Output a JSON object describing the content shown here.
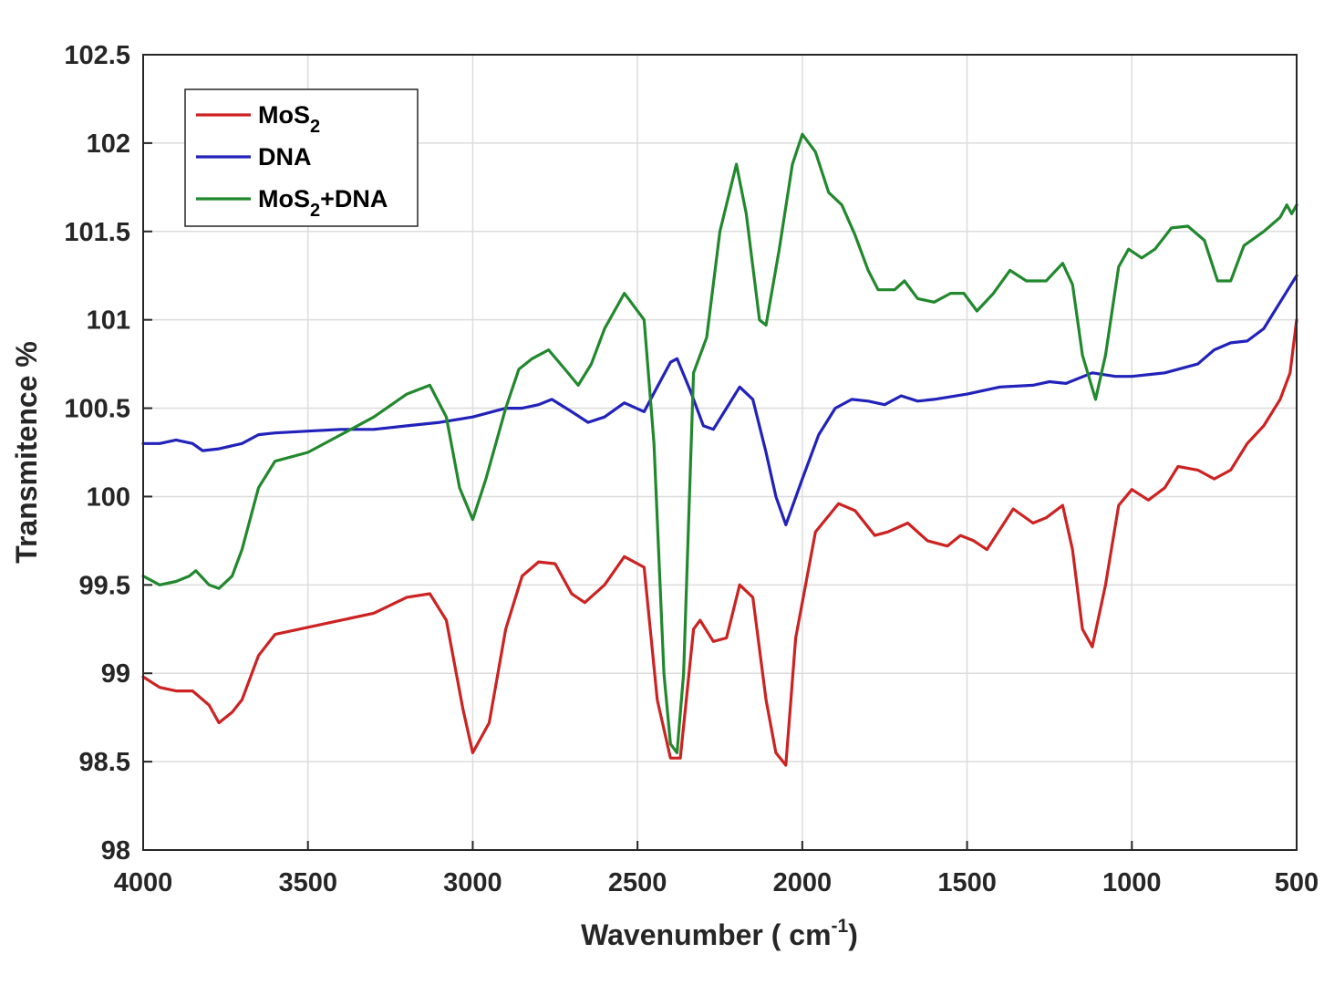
{
  "chart_data": {
    "type": "line",
    "xlabel": "Wavenumber ( cm",
    "xlabel_sup": "-1",
    "xlabel_close": ")",
    "ylabel": "Transmitence %",
    "xlim": [
      4000,
      500
    ],
    "x_reversed": true,
    "ylim": [
      98,
      102.5
    ],
    "x_ticks": [
      "4000",
      "3500",
      "3000",
      "2500",
      "2000",
      "1500",
      "1000",
      "500"
    ],
    "y_ticks": [
      "98",
      "98.5",
      "99",
      "99.5",
      "100",
      "100.5",
      "101",
      "101.5",
      "102",
      "102.5"
    ],
    "grid": true,
    "legend_position": "top-left",
    "series": [
      {
        "name": "MoS",
        "name_sub": "2",
        "name_suffix": "",
        "color": "#cc2222",
        "points": [
          [
            4000,
            98.98
          ],
          [
            3950,
            98.92
          ],
          [
            3900,
            98.9
          ],
          [
            3850,
            98.9
          ],
          [
            3800,
            98.82
          ],
          [
            3770,
            98.72
          ],
          [
            3730,
            98.78
          ],
          [
            3700,
            98.85
          ],
          [
            3650,
            99.1
          ],
          [
            3600,
            99.22
          ],
          [
            3500,
            99.26
          ],
          [
            3400,
            99.3
          ],
          [
            3300,
            99.34
          ],
          [
            3200,
            99.43
          ],
          [
            3130,
            99.45
          ],
          [
            3080,
            99.3
          ],
          [
            3030,
            98.8
          ],
          [
            3000,
            98.55
          ],
          [
            2950,
            98.72
          ],
          [
            2900,
            99.25
          ],
          [
            2850,
            99.55
          ],
          [
            2800,
            99.63
          ],
          [
            2750,
            99.62
          ],
          [
            2700,
            99.45
          ],
          [
            2660,
            99.4
          ],
          [
            2600,
            99.5
          ],
          [
            2540,
            99.66
          ],
          [
            2480,
            99.6
          ],
          [
            2440,
            98.85
          ],
          [
            2400,
            98.52
          ],
          [
            2370,
            98.52
          ],
          [
            2330,
            99.25
          ],
          [
            2310,
            99.3
          ],
          [
            2270,
            99.18
          ],
          [
            2230,
            99.2
          ],
          [
            2190,
            99.5
          ],
          [
            2150,
            99.43
          ],
          [
            2110,
            98.85
          ],
          [
            2080,
            98.55
          ],
          [
            2050,
            98.48
          ],
          [
            2020,
            99.2
          ],
          [
            1960,
            99.8
          ],
          [
            1890,
            99.96
          ],
          [
            1840,
            99.92
          ],
          [
            1780,
            99.78
          ],
          [
            1740,
            99.8
          ],
          [
            1680,
            99.85
          ],
          [
            1620,
            99.75
          ],
          [
            1560,
            99.72
          ],
          [
            1520,
            99.78
          ],
          [
            1480,
            99.75
          ],
          [
            1440,
            99.7
          ],
          [
            1360,
            99.93
          ],
          [
            1300,
            99.85
          ],
          [
            1260,
            99.88
          ],
          [
            1210,
            99.95
          ],
          [
            1180,
            99.7
          ],
          [
            1150,
            99.25
          ],
          [
            1120,
            99.15
          ],
          [
            1080,
            99.5
          ],
          [
            1040,
            99.95
          ],
          [
            1000,
            100.04
          ],
          [
            950,
            99.98
          ],
          [
            900,
            100.05
          ],
          [
            860,
            100.17
          ],
          [
            800,
            100.15
          ],
          [
            750,
            100.1
          ],
          [
            700,
            100.15
          ],
          [
            650,
            100.3
          ],
          [
            600,
            100.4
          ],
          [
            550,
            100.55
          ],
          [
            520,
            100.7
          ],
          [
            500,
            101.0
          ]
        ]
      },
      {
        "name": "DNA",
        "name_sub": "",
        "name_suffix": "",
        "color": "#2222bb",
        "points": [
          [
            4000,
            100.3
          ],
          [
            3950,
            100.3
          ],
          [
            3900,
            100.32
          ],
          [
            3850,
            100.3
          ],
          [
            3820,
            100.26
          ],
          [
            3770,
            100.27
          ],
          [
            3700,
            100.3
          ],
          [
            3650,
            100.35
          ],
          [
            3600,
            100.36
          ],
          [
            3500,
            100.37
          ],
          [
            3400,
            100.38
          ],
          [
            3300,
            100.38
          ],
          [
            3200,
            100.4
          ],
          [
            3100,
            100.42
          ],
          [
            3000,
            100.45
          ],
          [
            2900,
            100.5
          ],
          [
            2850,
            100.5
          ],
          [
            2800,
            100.52
          ],
          [
            2760,
            100.55
          ],
          [
            2700,
            100.48
          ],
          [
            2650,
            100.42
          ],
          [
            2600,
            100.45
          ],
          [
            2540,
            100.53
          ],
          [
            2480,
            100.48
          ],
          [
            2440,
            100.62
          ],
          [
            2400,
            100.76
          ],
          [
            2380,
            100.78
          ],
          [
            2340,
            100.6
          ],
          [
            2300,
            100.4
          ],
          [
            2270,
            100.38
          ],
          [
            2230,
            100.5
          ],
          [
            2190,
            100.62
          ],
          [
            2150,
            100.55
          ],
          [
            2110,
            100.25
          ],
          [
            2080,
            100.0
          ],
          [
            2050,
            99.84
          ],
          [
            2000,
            100.1
          ],
          [
            1950,
            100.35
          ],
          [
            1900,
            100.5
          ],
          [
            1850,
            100.55
          ],
          [
            1800,
            100.54
          ],
          [
            1750,
            100.52
          ],
          [
            1700,
            100.57
          ],
          [
            1650,
            100.54
          ],
          [
            1600,
            100.55
          ],
          [
            1500,
            100.58
          ],
          [
            1400,
            100.62
          ],
          [
            1300,
            100.63
          ],
          [
            1250,
            100.65
          ],
          [
            1200,
            100.64
          ],
          [
            1120,
            100.7
          ],
          [
            1050,
            100.68
          ],
          [
            1000,
            100.68
          ],
          [
            900,
            100.7
          ],
          [
            800,
            100.75
          ],
          [
            750,
            100.83
          ],
          [
            700,
            100.87
          ],
          [
            650,
            100.88
          ],
          [
            600,
            100.95
          ],
          [
            550,
            101.1
          ],
          [
            500,
            101.25
          ]
        ]
      },
      {
        "name": "MoS",
        "name_sub": "2",
        "name_suffix": "+DNA",
        "color": "#22882e",
        "points": [
          [
            4000,
            99.55
          ],
          [
            3950,
            99.5
          ],
          [
            3900,
            99.52
          ],
          [
            3860,
            99.55
          ],
          [
            3840,
            99.58
          ],
          [
            3800,
            99.5
          ],
          [
            3770,
            99.48
          ],
          [
            3730,
            99.55
          ],
          [
            3700,
            99.7
          ],
          [
            3650,
            100.05
          ],
          [
            3600,
            100.2
          ],
          [
            3500,
            100.25
          ],
          [
            3400,
            100.35
          ],
          [
            3300,
            100.45
          ],
          [
            3200,
            100.58
          ],
          [
            3130,
            100.63
          ],
          [
            3080,
            100.45
          ],
          [
            3040,
            100.05
          ],
          [
            3000,
            99.87
          ],
          [
            2960,
            100.1
          ],
          [
            2900,
            100.5
          ],
          [
            2860,
            100.72
          ],
          [
            2820,
            100.78
          ],
          [
            2770,
            100.83
          ],
          [
            2720,
            100.72
          ],
          [
            2680,
            100.63
          ],
          [
            2640,
            100.75
          ],
          [
            2600,
            100.95
          ],
          [
            2540,
            101.15
          ],
          [
            2480,
            101.0
          ],
          [
            2450,
            100.3
          ],
          [
            2420,
            99.0
          ],
          [
            2400,
            98.6
          ],
          [
            2380,
            98.55
          ],
          [
            2360,
            99.0
          ],
          [
            2330,
            100.7
          ],
          [
            2290,
            100.9
          ],
          [
            2250,
            101.5
          ],
          [
            2200,
            101.88
          ],
          [
            2170,
            101.6
          ],
          [
            2130,
            101.0
          ],
          [
            2110,
            100.97
          ],
          [
            2070,
            101.4
          ],
          [
            2030,
            101.88
          ],
          [
            2000,
            102.05
          ],
          [
            1960,
            101.95
          ],
          [
            1920,
            101.72
          ],
          [
            1880,
            101.65
          ],
          [
            1840,
            101.48
          ],
          [
            1800,
            101.28
          ],
          [
            1770,
            101.17
          ],
          [
            1720,
            101.17
          ],
          [
            1690,
            101.22
          ],
          [
            1650,
            101.12
          ],
          [
            1600,
            101.1
          ],
          [
            1550,
            101.15
          ],
          [
            1510,
            101.15
          ],
          [
            1470,
            101.05
          ],
          [
            1420,
            101.15
          ],
          [
            1370,
            101.28
          ],
          [
            1320,
            101.22
          ],
          [
            1260,
            101.22
          ],
          [
            1210,
            101.32
          ],
          [
            1180,
            101.2
          ],
          [
            1150,
            100.8
          ],
          [
            1110,
            100.55
          ],
          [
            1080,
            100.8
          ],
          [
            1040,
            101.3
          ],
          [
            1010,
            101.4
          ],
          [
            970,
            101.35
          ],
          [
            930,
            101.4
          ],
          [
            880,
            101.52
          ],
          [
            830,
            101.53
          ],
          [
            780,
            101.45
          ],
          [
            740,
            101.22
          ],
          [
            700,
            101.22
          ],
          [
            660,
            101.42
          ],
          [
            600,
            101.5
          ],
          [
            550,
            101.58
          ],
          [
            530,
            101.65
          ],
          [
            515,
            101.6
          ],
          [
            500,
            101.65
          ]
        ]
      }
    ]
  }
}
